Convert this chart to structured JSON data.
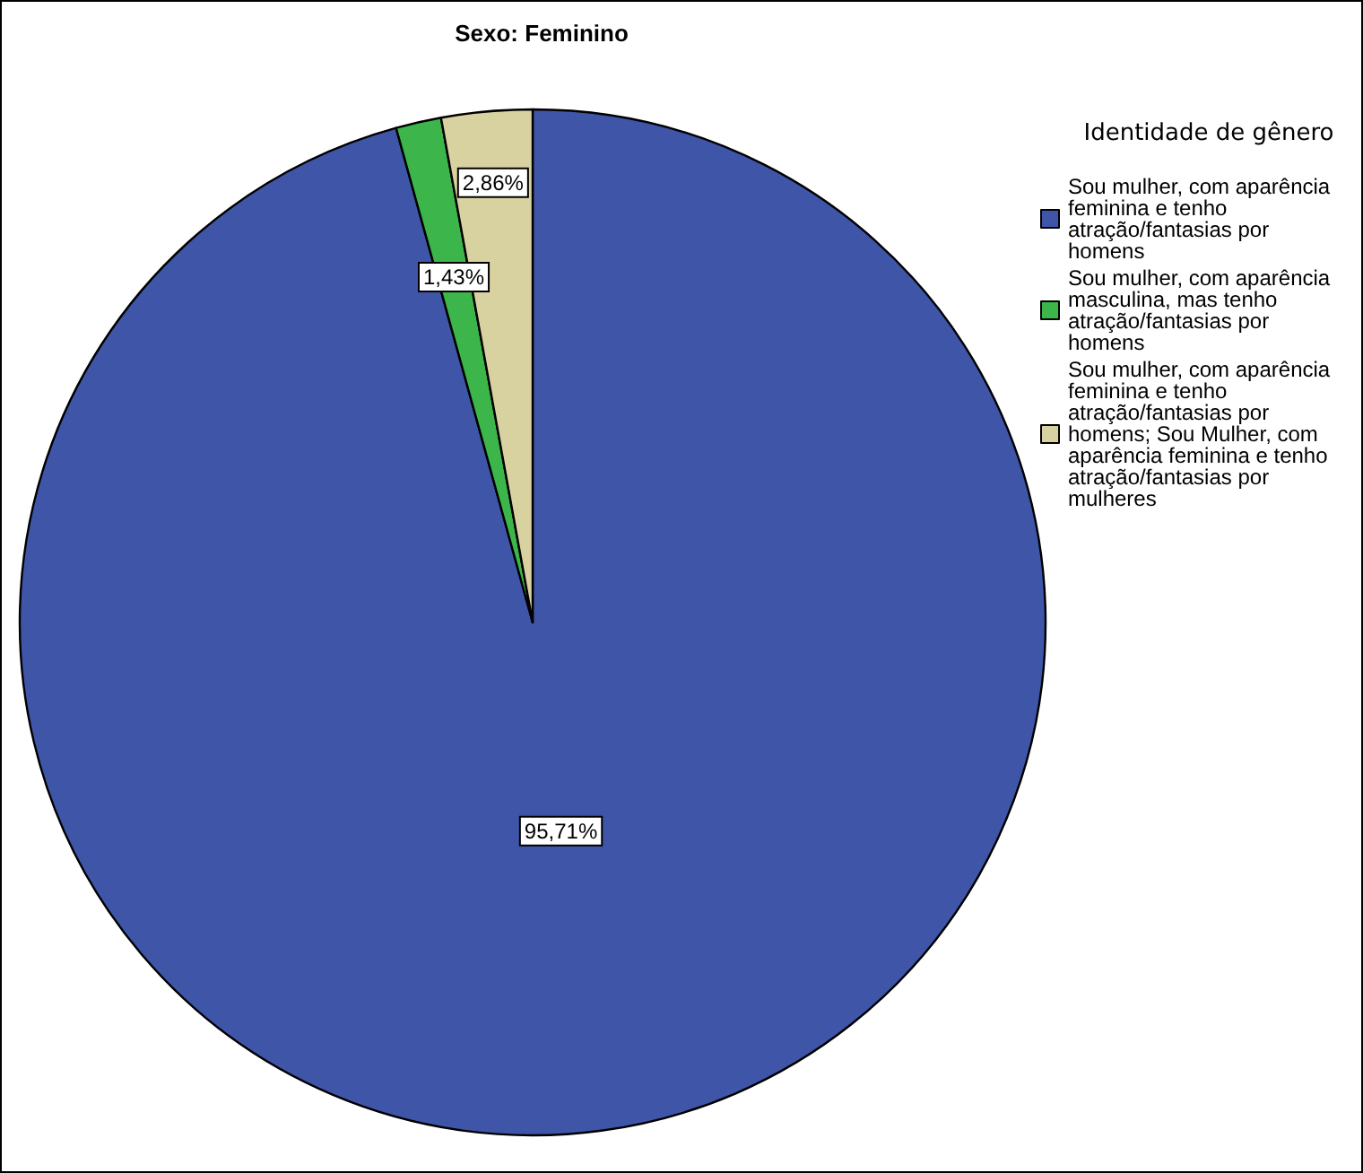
{
  "chart_data": {
    "type": "pie",
    "title": "Sexo: Feminino",
    "legend_title": "Identidade de gênero",
    "categories": [
      "Sou mulher, com aparência feminina e tenho atração/fantasias por homens",
      "Sou mulher, com aparência masculina, mas tenho atração/fantasias por homens",
      "Sou mulher, com aparência feminina e tenho atração/fantasias por homens; Sou Mulher, com aparência feminina e tenho atração/fantasias por mulheres"
    ],
    "values": [
      95.71,
      1.43,
      2.86
    ],
    "colors": [
      "#3f55a8",
      "#3cb54a",
      "#d8d2a1"
    ],
    "value_labels": [
      "95,71%",
      "1,43%",
      "2,86%"
    ],
    "legend": "top right"
  }
}
